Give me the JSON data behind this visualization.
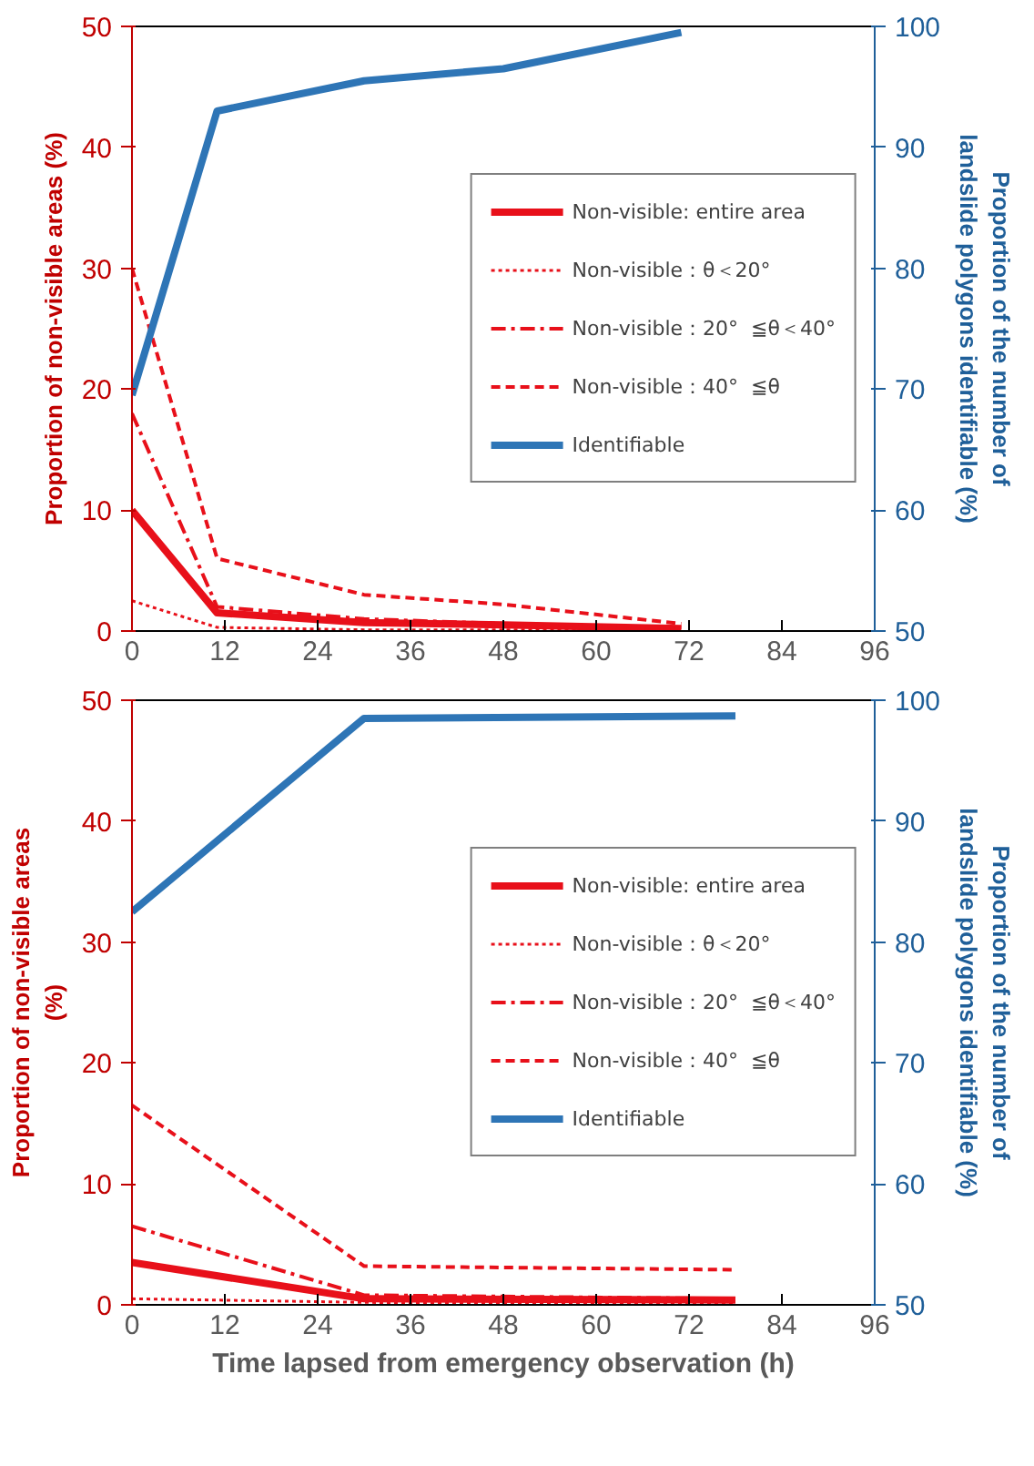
{
  "chart_data": [
    {
      "type": "line",
      "ylabel": "Proportion of non-visible areas (%)",
      "y2label": "Proportion of the number of\nlandslide polygons identifiable (%)",
      "xlim": [
        0,
        96
      ],
      "xticks": [
        0,
        12,
        24,
        36,
        48,
        60,
        72,
        84,
        96
      ],
      "ylim": [
        0,
        50
      ],
      "yticks": [
        0,
        10,
        20,
        30,
        40,
        50
      ],
      "y2lim": [
        50,
        100
      ],
      "y2ticks": [
        50,
        60,
        70,
        80,
        90,
        100
      ],
      "legend": "right",
      "grid": false,
      "x": [
        0,
        11,
        30,
        48,
        71
      ],
      "series": [
        {
          "name": "Non-visible: entire area",
          "color": "#e8101a",
          "line_style": "solid",
          "values": [
            10,
            1.5,
            0.7,
            0.5,
            0.2
          ]
        },
        {
          "name": "Non-visible：θ＜20°",
          "color": "#e8101a",
          "line_style": "dotted",
          "values": [
            2.5,
            0.3,
            0.1,
            0.1,
            0.1
          ]
        },
        {
          "name": "Non-visible：20°  ≦θ＜40°",
          "color": "#e8101a",
          "line_style": "dashdot",
          "values": [
            18,
            2,
            1,
            0.6,
            0.3
          ]
        },
        {
          "name": "Non-visible：40°  ≦θ",
          "color": "#e8101a",
          "line_style": "dashed",
          "values": [
            30,
            6,
            3,
            2.2,
            0.6
          ]
        },
        {
          "name": "Identifiable",
          "color": "#2e75b6",
          "line_style": "solid",
          "axis": "y2",
          "values": [
            69.5,
            93,
            95.5,
            96.5,
            99.5
          ]
        }
      ]
    },
    {
      "type": "line",
      "xlabel": "Time lapsed from emergency observation (h)",
      "ylabel": "Proportion of non-visible areas\n(%)",
      "y2label": "Proportion of the number of\nlandslide polygons identifiable (%)",
      "xlim": [
        0,
        96
      ],
      "xticks": [
        0,
        12,
        24,
        36,
        48,
        60,
        72,
        84,
        96
      ],
      "ylim": [
        0,
        50
      ],
      "yticks": [
        0,
        10,
        20,
        30,
        40,
        50
      ],
      "y2lim": [
        50,
        100
      ],
      "y2ticks": [
        50,
        60,
        70,
        80,
        90,
        100
      ],
      "legend": "right",
      "grid": false,
      "x": [
        0,
        30,
        78
      ],
      "series": [
        {
          "name": "Non-visible: entire area",
          "color": "#e8101a",
          "line_style": "solid",
          "values": [
            3.5,
            0.5,
            0.4
          ]
        },
        {
          "name": "Non-visible：θ＜20°",
          "color": "#e8101a",
          "line_style": "dotted",
          "values": [
            0.5,
            0.2,
            0.1
          ]
        },
        {
          "name": "Non-visible：20°  ≦θ＜40°",
          "color": "#e8101a",
          "line_style": "dashdot",
          "values": [
            6.5,
            0.8,
            0.5
          ]
        },
        {
          "name": "Non-visible：40°  ≦θ",
          "color": "#e8101a",
          "line_style": "dashed",
          "values": [
            16.5,
            3.2,
            2.9
          ]
        },
        {
          "name": "Identifiable",
          "color": "#2e75b6",
          "line_style": "solid",
          "axis": "y2",
          "values": [
            82.5,
            98.5,
            98.7
          ]
        }
      ]
    }
  ]
}
